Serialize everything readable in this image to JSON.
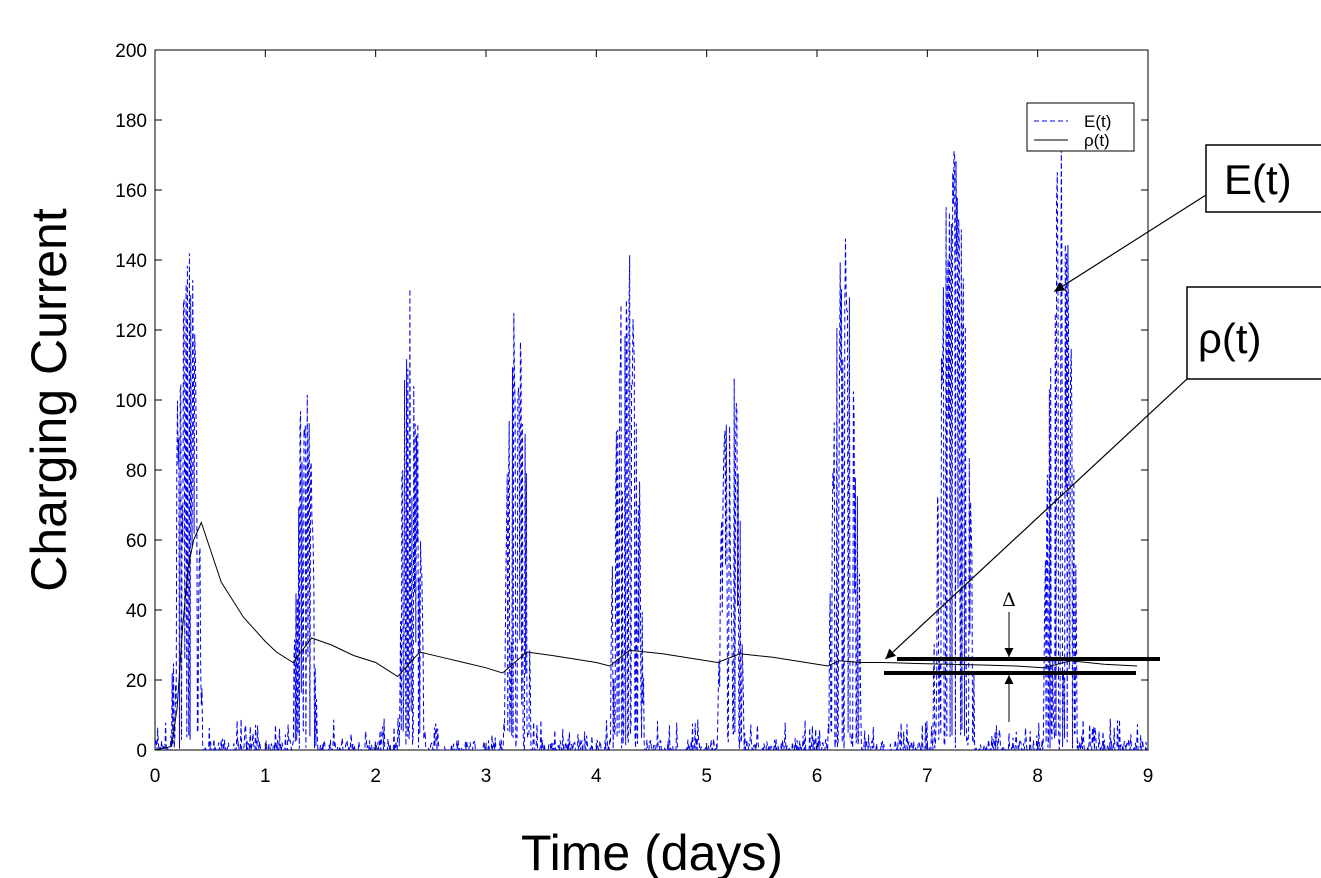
{
  "chart_data": {
    "type": "line",
    "title": "",
    "xlabel": "Time (days)",
    "ylabel": "Charging Current",
    "xlim": [
      0,
      9
    ],
    "ylim": [
      0,
      200
    ],
    "xticks": [
      "0",
      "1",
      "2",
      "3",
      "4",
      "5",
      "6",
      "7",
      "8",
      "9"
    ],
    "yticks": [
      "0",
      "20",
      "40",
      "60",
      "80",
      "100",
      "120",
      "140",
      "160",
      "180",
      "200"
    ],
    "grid": false,
    "legend_position": "top-right",
    "series": [
      {
        "name": "E(t)",
        "style": "dashed",
        "color": "#0000ee",
        "bursts": [
          {
            "start": 0.15,
            "end": 0.45,
            "peak": 152
          },
          {
            "start": 1.25,
            "end": 1.48,
            "peak": 113
          },
          {
            "start": 2.2,
            "end": 2.45,
            "peak": 133
          },
          {
            "start": 3.15,
            "end": 3.42,
            "peak": 132
          },
          {
            "start": 4.12,
            "end": 4.45,
            "peak": 146
          },
          {
            "start": 5.1,
            "end": 5.35,
            "peak": 119
          },
          {
            "start": 6.1,
            "end": 6.42,
            "peak": 151
          },
          {
            "start": 7.05,
            "end": 7.45,
            "peak": 176
          },
          {
            "start": 8.05,
            "end": 8.38,
            "peak": 175
          }
        ]
      },
      {
        "name": "ρ(t)",
        "style": "solid",
        "color": "#000000",
        "x": [
          0,
          0.15,
          0.2,
          0.25,
          0.3,
          0.35,
          0.42,
          0.6,
          0.8,
          1.0,
          1.1,
          1.25,
          1.42,
          1.6,
          1.8,
          2.0,
          2.2,
          2.4,
          2.6,
          2.8,
          3.0,
          3.15,
          3.37,
          3.6,
          3.8,
          4.0,
          4.12,
          4.3,
          4.6,
          4.9,
          5.1,
          5.3,
          5.6,
          5.9,
          6.1,
          6.2,
          6.4,
          6.6,
          6.9,
          7.2,
          7.5,
          7.8,
          8.05,
          8.3,
          8.6,
          8.9
        ],
        "values": [
          0,
          1,
          12,
          35,
          52,
          60,
          65,
          48,
          38,
          31,
          28,
          25,
          32,
          30,
          27,
          25,
          21,
          28,
          26.5,
          25,
          23.5,
          22,
          28,
          27,
          26,
          25,
          24,
          28.5,
          27.5,
          26,
          25,
          27.5,
          26.5,
          25,
          24,
          25.5,
          25,
          25,
          24.7,
          24.5,
          24.3,
          24,
          23.5,
          25.5,
          24.5,
          24
        ]
      }
    ],
    "annotations": [
      {
        "label": "E(t)",
        "arrow_to": [
          8.15,
          131
        ]
      },
      {
        "label": "ρ(t)",
        "arrow_to": [
          6.62,
          26
        ]
      },
      {
        "label": "Δ",
        "between_levels": [
          22,
          26
        ]
      }
    ]
  }
}
